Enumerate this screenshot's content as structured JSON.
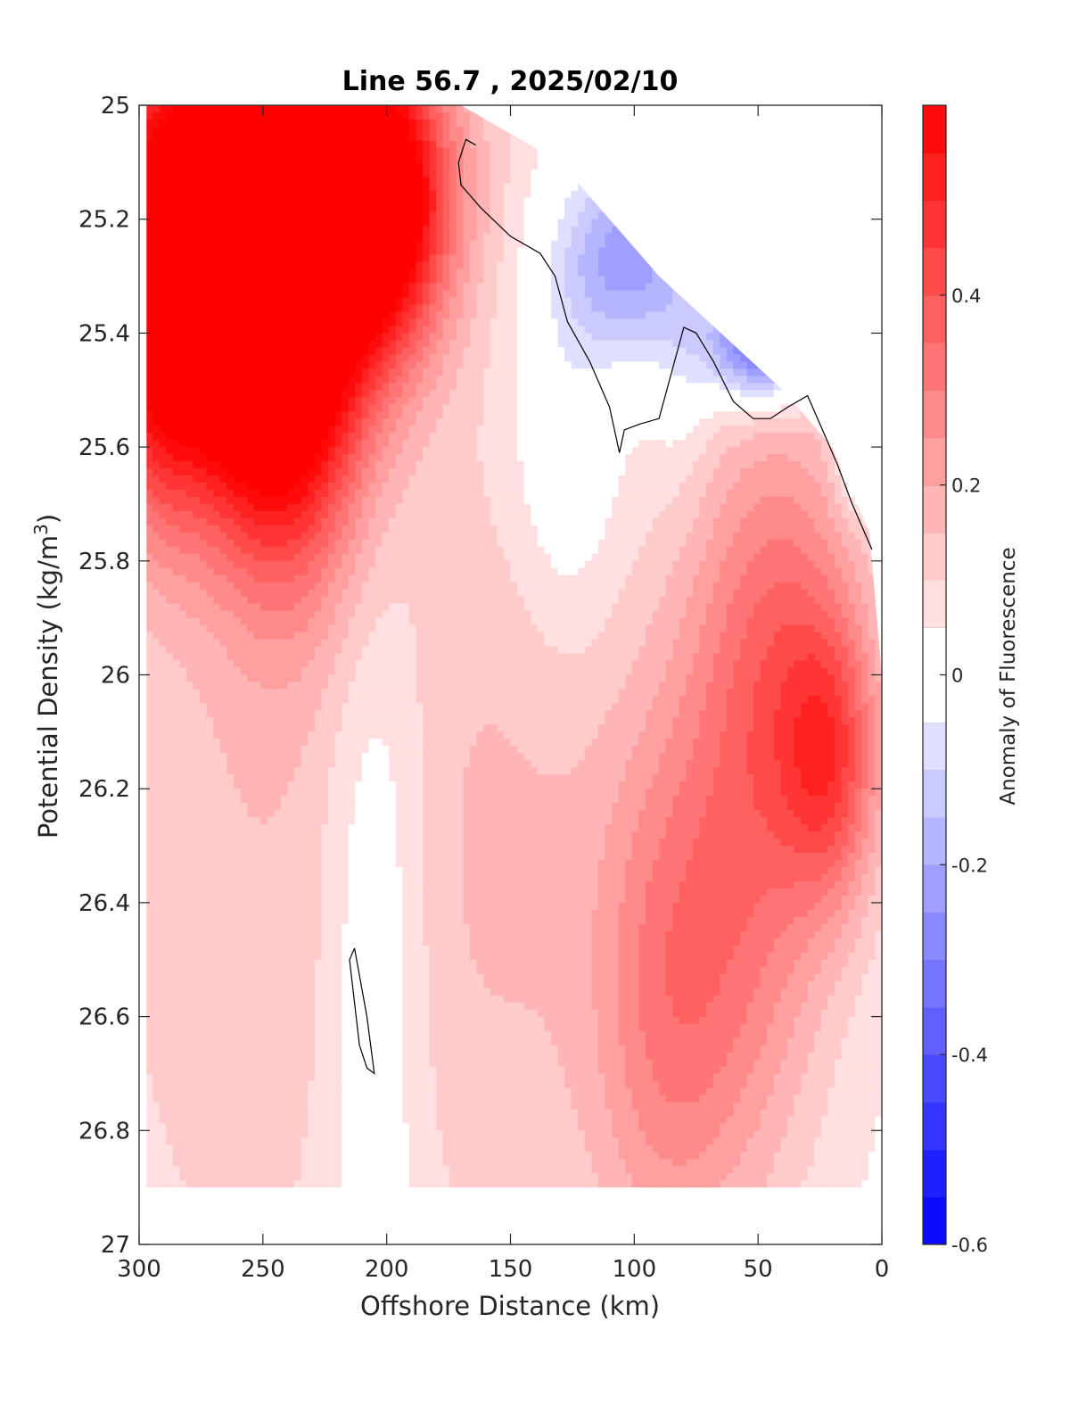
{
  "chart_data": {
    "type": "contourf",
    "title": "Line 56.7 , 2025/02/10",
    "xlabel": "Offshore Distance (km)",
    "ylabel_base": "Potential Density (kg/m",
    "ylabel_sup": "3",
    "ylabel_close": ")",
    "xlim": [
      300,
      0
    ],
    "ylim": [
      25,
      27
    ],
    "x_reversed": true,
    "y_reversed": true,
    "xticks": [
      300,
      250,
      200,
      150,
      100,
      50,
      0
    ],
    "xtick_labels": [
      "300",
      "250",
      "200",
      "150",
      "100",
      "50",
      "0"
    ],
    "yticks": [
      25,
      25.2,
      25.4,
      25.6,
      25.8,
      26,
      26.2,
      26.4,
      26.6,
      26.8,
      27
    ],
    "ytick_labels": [
      "25",
      "25.2",
      "25.4",
      "25.6",
      "25.8",
      "26",
      "26.2",
      "26.4",
      "26.6",
      "26.8",
      "27"
    ],
    "colorbar": {
      "label": "Anomaly of Fluorescence",
      "range": [
        -0.6,
        0.6
      ],
      "step": 0.05,
      "ticks": [
        -0.6,
        -0.4,
        -0.2,
        0,
        0.2,
        0.4
      ],
      "tick_labels": [
        "-0.6",
        "-0.4",
        "-0.2",
        "0",
        "0.2",
        "0.4"
      ],
      "neg_color": "#0000ff",
      "pos_color": "#ff0000",
      "mid_color": "#ffffff"
    },
    "data_extent": {
      "x": [
        297,
        0
      ],
      "y_bottom": 26.9,
      "top_edge": [
        [
          180,
          25.0
        ],
        [
          170,
          25.0
        ],
        [
          130,
          25.1
        ],
        [
          110,
          25.2
        ],
        [
          90,
          25.3
        ],
        [
          65,
          25.4
        ],
        [
          40,
          25.5
        ],
        [
          20,
          25.6
        ],
        [
          5,
          25.75
        ],
        [
          0,
          26.0
        ]
      ]
    },
    "features": [
      {
        "kind": "high",
        "x": 252,
        "y": 25.1,
        "value": 0.6,
        "sx": 45,
        "sy": 0.22
      },
      {
        "kind": "high",
        "x": 262,
        "y": 25.42,
        "value": 0.42,
        "sx": 30,
        "sy": 0.22
      },
      {
        "kind": "high",
        "x": 240,
        "y": 25.45,
        "value": 0.45,
        "sx": 24,
        "sy": 0.3
      },
      {
        "kind": "high",
        "x": 200,
        "y": 25.18,
        "value": 0.45,
        "sx": 18,
        "sy": 0.18
      },
      {
        "kind": "high",
        "x": 294,
        "y": 25.4,
        "value": 0.32,
        "sx": 14,
        "sy": 0.25
      },
      {
        "kind": "high",
        "x": 42,
        "y": 25.95,
        "value": 0.28,
        "sx": 25,
        "sy": 0.32
      },
      {
        "kind": "high",
        "x": 20,
        "y": 26.15,
        "value": 0.28,
        "sx": 14,
        "sy": 0.18
      },
      {
        "kind": "high",
        "x": 60,
        "y": 26.5,
        "value": 0.2,
        "sx": 26,
        "sy": 0.35
      },
      {
        "kind": "high",
        "x": 90,
        "y": 26.6,
        "value": 0.15,
        "sx": 20,
        "sy": 0.35
      },
      {
        "kind": "high",
        "x": 150,
        "y": 26.3,
        "value": 0.12,
        "sx": 45,
        "sy": 0.6
      },
      {
        "kind": "high",
        "x": 260,
        "y": 26.4,
        "value": 0.1,
        "sx": 45,
        "sy": 0.6
      },
      {
        "kind": "low",
        "x": 103,
        "y": 25.27,
        "value": -0.27,
        "sx": 20,
        "sy": 0.12
      },
      {
        "kind": "low",
        "x": 48,
        "y": 25.42,
        "value": -0.45,
        "sx": 15,
        "sy": 0.07
      },
      {
        "kind": "low",
        "x": 5,
        "y": 25.58,
        "value": -0.55,
        "sx": 7,
        "sy": 0.07
      },
      {
        "kind": "low",
        "x": 205,
        "y": 26.45,
        "value": -0.12,
        "sx": 15,
        "sy": 0.5
      },
      {
        "kind": "low",
        "x": 128,
        "y": 25.6,
        "value": -0.1,
        "sx": 16,
        "sy": 0.25
      },
      {
        "kind": "low",
        "x": 80,
        "y": 25.45,
        "value": -0.07,
        "sx": 10,
        "sy": 0.15
      }
    ],
    "zero_contours": [
      [
        [
          164,
          25.07
        ],
        [
          168,
          25.06
        ],
        [
          171,
          25.1
        ],
        [
          170,
          25.14
        ],
        [
          162,
          25.18
        ],
        [
          150,
          25.23
        ],
        [
          138,
          25.26
        ],
        [
          132,
          25.3
        ],
        [
          127,
          25.38
        ],
        [
          118,
          25.45
        ],
        [
          110,
          25.53
        ],
        [
          106,
          25.61
        ],
        [
          104,
          25.57
        ],
        [
          98,
          25.56
        ],
        [
          90,
          25.55
        ],
        [
          85,
          25.47
        ],
        [
          80,
          25.39
        ],
        [
          75,
          25.4
        ],
        [
          68,
          25.45
        ],
        [
          60,
          25.52
        ],
        [
          52,
          25.55
        ],
        [
          45,
          25.55
        ],
        [
          38,
          25.53
        ],
        [
          30,
          25.51
        ],
        [
          24,
          25.57
        ],
        [
          18,
          25.63
        ],
        [
          12,
          25.7
        ],
        [
          4,
          25.78
        ]
      ],
      [
        [
          213,
          26.48
        ],
        [
          215,
          26.5
        ],
        [
          211,
          26.65
        ],
        [
          208,
          26.69
        ],
        [
          205,
          26.7
        ],
        [
          208,
          26.6
        ],
        [
          213,
          26.48
        ]
      ]
    ]
  }
}
